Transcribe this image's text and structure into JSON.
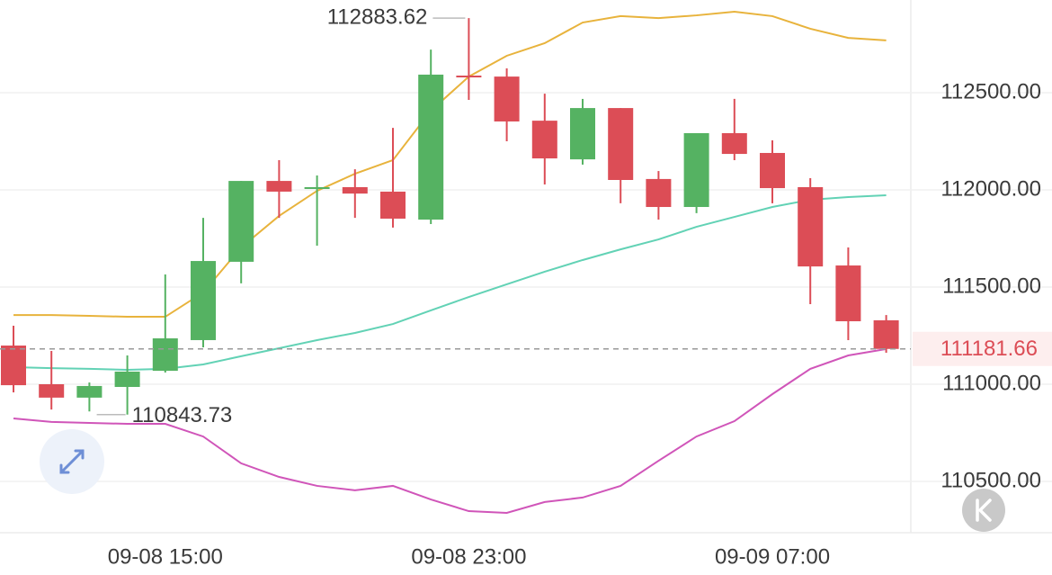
{
  "chart_data": {
    "type": "candlestick",
    "categories": [
      null,
      null,
      null,
      null,
      "09-08 15:00",
      null,
      null,
      null,
      null,
      null,
      null,
      null,
      "09-08 23:00",
      null,
      null,
      null,
      null,
      null,
      null,
      null,
      "09-09 07:00",
      null,
      null,
      null
    ],
    "open": [
      111199,
      111000,
      110931,
      110986,
      111069,
      111227,
      111630,
      112046,
      112005,
      112014,
      111991,
      111847,
      112588,
      112583,
      112356,
      112157,
      112421,
      112056,
      111912,
      112292,
      112190,
      112014,
      111611,
      111329
    ],
    "high": [
      111301,
      111171,
      111009,
      111148,
      111565,
      111856,
      112046,
      112153,
      112074,
      112106,
      112319,
      112722,
      112883.62,
      112625,
      112495,
      112468,
      112421,
      112097,
      112292,
      112468,
      112255,
      112060,
      111704,
      111356
    ],
    "low": [
      110958,
      110870,
      110860,
      110843.73,
      111060,
      111190,
      111519,
      111856,
      111713,
      111856,
      111806,
      111824,
      112463,
      112250,
      112028,
      112130,
      111931,
      111847,
      111880,
      112153,
      111931,
      111412,
      111227,
      111162
    ],
    "close": [
      110995,
      110931,
      110991,
      111065,
      111236,
      111634,
      112046,
      111991,
      112014,
      111981,
      111852,
      112593,
      112579,
      112352,
      112162,
      112421,
      112051,
      111912,
      112292,
      112185,
      112009,
      111606,
      111324,
      111181.66
    ],
    "up_color": "#55b262",
    "down_color": "#dc4d56",
    "series": [
      {
        "color": "#e8b33c",
        "values": [
          111356,
          111356,
          111352,
          111347,
          111347,
          111472,
          111704,
          111866,
          111995,
          112083,
          112153,
          112407,
          112583,
          112690,
          112755,
          112861,
          112894,
          112884,
          112898,
          112917,
          112894,
          112829,
          112782,
          112769
        ]
      },
      {
        "color": "#62d2b5",
        "values": [
          111088,
          111083,
          111079,
          111074,
          111079,
          111102,
          111144,
          111185,
          111227,
          111264,
          111310,
          111380,
          111449,
          111514,
          111579,
          111639,
          111694,
          111745,
          111810,
          111861,
          111912,
          111949,
          111963,
          111972
        ]
      },
      {
        "color": "#d055b9",
        "values": [
          110824,
          110806,
          110801,
          110796,
          110796,
          110731,
          110593,
          110523,
          110477,
          110454,
          110477,
          110407,
          110347,
          110338,
          110394,
          110417,
          110477,
          110606,
          110731,
          110810,
          110949,
          111079,
          111148,
          111181
        ]
      }
    ],
    "ylim": [
      110236,
      112977
    ],
    "yticks": [
      {
        "value": 112500,
        "label": "112500.00"
      },
      {
        "value": 112000,
        "label": "112000.00"
      },
      {
        "value": 111500,
        "label": "111500.00"
      },
      {
        "value": 111000,
        "label": "111000.00"
      },
      {
        "value": 110500,
        "label": "110500.00"
      }
    ],
    "grid": true,
    "max_annotation": {
      "value": 112883.62,
      "label": "112883.62"
    },
    "min_annotation": {
      "value": 110843.73,
      "label": "110843.73"
    },
    "last_price": {
      "value": 111181.66,
      "label": "111181.66"
    }
  }
}
